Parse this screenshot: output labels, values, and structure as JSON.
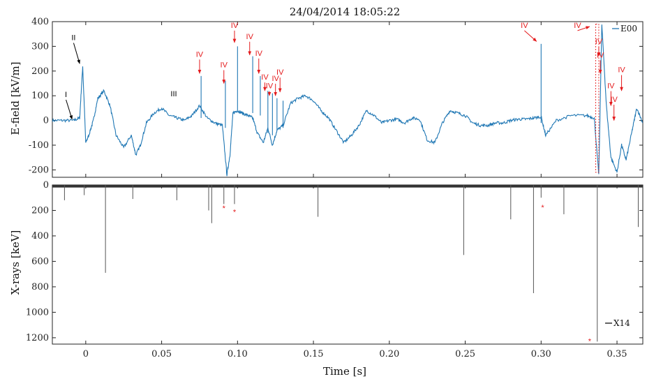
{
  "chart_data": [
    {
      "type": "line",
      "title": "24/04/2014 18:05:22",
      "xlabel": "",
      "ylabel": "E-field [kV/m]",
      "xlim": [
        -0.022,
        0.367
      ],
      "ylim": [
        -230,
        400
      ],
      "xticks": [
        0,
        0.05,
        0.1,
        0.15,
        0.2,
        0.25,
        0.3,
        0.35
      ],
      "yticks": [
        -200,
        -100,
        0,
        100,
        200,
        300,
        400
      ],
      "ytick_labels": [
        "-200",
        "-100",
        "0",
        "100",
        "200",
        "300",
        "400"
      ],
      "grid": false,
      "legend": "top-right",
      "series": [
        {
          "name": "E00",
          "color": "#1f77b4",
          "x": [
            -0.022,
            -0.015,
            -0.008,
            -0.004,
            -0.002,
            0.0,
            0.002,
            0.005,
            0.008,
            0.012,
            0.016,
            0.02,
            0.025,
            0.03,
            0.033,
            0.036,
            0.04,
            0.045,
            0.05,
            0.055,
            0.06,
            0.065,
            0.07,
            0.075,
            0.08,
            0.085,
            0.09,
            0.093,
            0.095,
            0.097,
            0.1,
            0.103,
            0.107,
            0.11,
            0.113,
            0.117,
            0.12,
            0.123,
            0.126,
            0.13,
            0.135,
            0.14,
            0.145,
            0.15,
            0.155,
            0.16,
            0.165,
            0.17,
            0.175,
            0.18,
            0.185,
            0.19,
            0.195,
            0.2,
            0.205,
            0.21,
            0.215,
            0.22,
            0.225,
            0.23,
            0.235,
            0.24,
            0.245,
            0.25,
            0.255,
            0.26,
            0.265,
            0.27,
            0.275,
            0.28,
            0.285,
            0.29,
            0.295,
            0.3,
            0.303,
            0.31,
            0.32,
            0.33,
            0.335,
            0.338,
            0.34,
            0.343,
            0.346,
            0.35,
            0.353,
            0.356,
            0.36,
            0.363,
            0.367
          ],
          "values": [
            0,
            0,
            0,
            10,
            220,
            -90,
            -60,
            0,
            90,
            120,
            60,
            -60,
            -110,
            -60,
            -140,
            -100,
            -10,
            30,
            50,
            20,
            10,
            0,
            20,
            60,
            10,
            -10,
            -20,
            -220,
            -140,
            30,
            40,
            30,
            20,
            10,
            -50,
            -90,
            -30,
            -100,
            -40,
            -20,
            70,
            90,
            100,
            80,
            40,
            10,
            -40,
            -90,
            -60,
            -20,
            40,
            20,
            -10,
            0,
            5,
            -10,
            10,
            5,
            -80,
            -90,
            -10,
            40,
            30,
            20,
            -10,
            -20,
            -20,
            -10,
            -10,
            0,
            5,
            5,
            10,
            15,
            -60,
            0,
            20,
            20,
            10,
            -220,
            390,
            60,
            -150,
            -210,
            -100,
            -160,
            -40,
            50,
            -10
          ]
        }
      ],
      "spikes": [
        {
          "x": 0.076,
          "peak": 180,
          "base": 10
        },
        {
          "x": 0.092,
          "peak": 160,
          "base": -30
        },
        {
          "x": 0.1,
          "peak": 300,
          "base": 40
        },
        {
          "x": 0.11,
          "peak": 260,
          "base": 30
        },
        {
          "x": 0.115,
          "peak": 180,
          "base": 20
        },
        {
          "x": 0.12,
          "peak": 120,
          "base": -50
        },
        {
          "x": 0.123,
          "peak": 110,
          "base": -60
        },
        {
          "x": 0.126,
          "peak": 90,
          "base": -40
        },
        {
          "x": 0.13,
          "peak": 80,
          "base": -30
        },
        {
          "x": 0.3,
          "peak": 310,
          "base": -10
        }
      ],
      "annotations": [
        {
          "text": "I",
          "x": -0.013,
          "y": 95,
          "tx": -0.009,
          "ty": 5,
          "color": "#000000"
        },
        {
          "text": "II",
          "x": -0.008,
          "y": 325,
          "tx": -0.004,
          "ty": 230,
          "color": "#000000"
        },
        {
          "text": "III",
          "x": 0.058,
          "y": 98,
          "color": "#000000"
        },
        {
          "text": "IV",
          "x": 0.075,
          "y": 258,
          "tx": 0.075,
          "ty": 190,
          "color": "#e41a1c"
        },
        {
          "text": "IV",
          "x": 0.091,
          "y": 215,
          "tx": 0.091,
          "ty": 150,
          "color": "#e41a1c"
        },
        {
          "text": "IV",
          "x": 0.098,
          "y": 375,
          "tx": 0.098,
          "ty": 315,
          "color": "#e41a1c"
        },
        {
          "text": "IV",
          "x": 0.108,
          "y": 330,
          "tx": 0.108,
          "ty": 265,
          "color": "#e41a1c"
        },
        {
          "text": "IV",
          "x": 0.114,
          "y": 262,
          "tx": 0.114,
          "ty": 190,
          "color": "#e41a1c"
        },
        {
          "text": "IV",
          "x": 0.118,
          "y": 165,
          "tx": 0.118,
          "ty": 120,
          "color": "#e41a1c"
        },
        {
          "text": "IV",
          "x": 0.121,
          "y": 130,
          "tx": 0.121,
          "ty": 100,
          "color": "#e41a1c"
        },
        {
          "text": "IV",
          "x": 0.125,
          "y": 160,
          "tx": 0.125,
          "ty": 100,
          "color": "#e41a1c"
        },
        {
          "text": "IV",
          "x": 0.128,
          "y": 185,
          "tx": 0.128,
          "ty": 115,
          "color": "#e41a1c"
        },
        {
          "text": "IV",
          "x": 0.289,
          "y": 375,
          "tx": 0.297,
          "ty": 320,
          "color": "#e41a1c"
        },
        {
          "text": "IV",
          "x": 0.324,
          "y": 375,
          "tx": 0.332,
          "ty": 380,
          "color": "#e41a1c"
        },
        {
          "text": "IV",
          "x": 0.338,
          "y": 310,
          "tx": 0.338,
          "ty": 260,
          "color": "#e41a1c"
        },
        {
          "text": "IV",
          "x": 0.339,
          "y": 255,
          "tx": 0.339,
          "ty": 190,
          "color": "#e41a1c"
        },
        {
          "text": "IV",
          "x": 0.346,
          "y": 130,
          "tx": 0.346,
          "ty": 60,
          "color": "#e41a1c"
        },
        {
          "text": "IV",
          "x": 0.348,
          "y": 75,
          "tx": 0.348,
          "ty": 0,
          "color": "#e41a1c"
        },
        {
          "text": "IV",
          "x": 0.353,
          "y": 195,
          "tx": 0.353,
          "ty": 120,
          "color": "#e41a1c"
        }
      ],
      "highlight_region": {
        "x0": 0.336,
        "x1": 0.338,
        "y0": -210,
        "y1": 390,
        "color": "#e41a1c"
      }
    },
    {
      "type": "bar",
      "xlabel": "Time [s]",
      "ylabel": "X-rays [keV]",
      "xlim": [
        -0.022,
        0.367
      ],
      "ylim": [
        1250,
        0
      ],
      "xticks": [
        0,
        0.05,
        0.1,
        0.15,
        0.2,
        0.25,
        0.3,
        0.35
      ],
      "xtick_labels": [
        "0",
        "0.05",
        "0.10",
        "0.15",
        "0.20",
        "0.25",
        "0.30",
        "0.35"
      ],
      "yticks": [
        0,
        200,
        400,
        600,
        800,
        1000,
        1200
      ],
      "ytick_labels": [
        "0",
        "200",
        "400",
        "600",
        "800",
        "1000",
        "1200"
      ],
      "grid": false,
      "legend": "bottom-right",
      "series": [
        {
          "name": "X14",
          "color": "#555555",
          "x": [
            -0.014,
            -0.001,
            0.013,
            0.031,
            0.06,
            0.081,
            0.083,
            0.091,
            0.098,
            0.153,
            0.249,
            0.28,
            0.295,
            0.3,
            0.315,
            0.337,
            0.364
          ],
          "values": [
            120,
            80,
            690,
            110,
            120,
            200,
            300,
            150,
            150,
            250,
            550,
            270,
            850,
            100,
            230,
            1230,
            330
          ]
        }
      ],
      "noise_band": [
        0,
        20
      ],
      "markers": [
        {
          "text": "*",
          "x": 0.091,
          "y": 170,
          "color": "#e41a1c"
        },
        {
          "text": "*",
          "x": 0.098,
          "y": 200,
          "color": "#e41a1c"
        },
        {
          "text": "*",
          "x": 0.301,
          "y": 165,
          "color": "#e41a1c"
        },
        {
          "text": "*",
          "x": 0.332,
          "y": 1215,
          "color": "#e41a1c"
        }
      ]
    }
  ]
}
